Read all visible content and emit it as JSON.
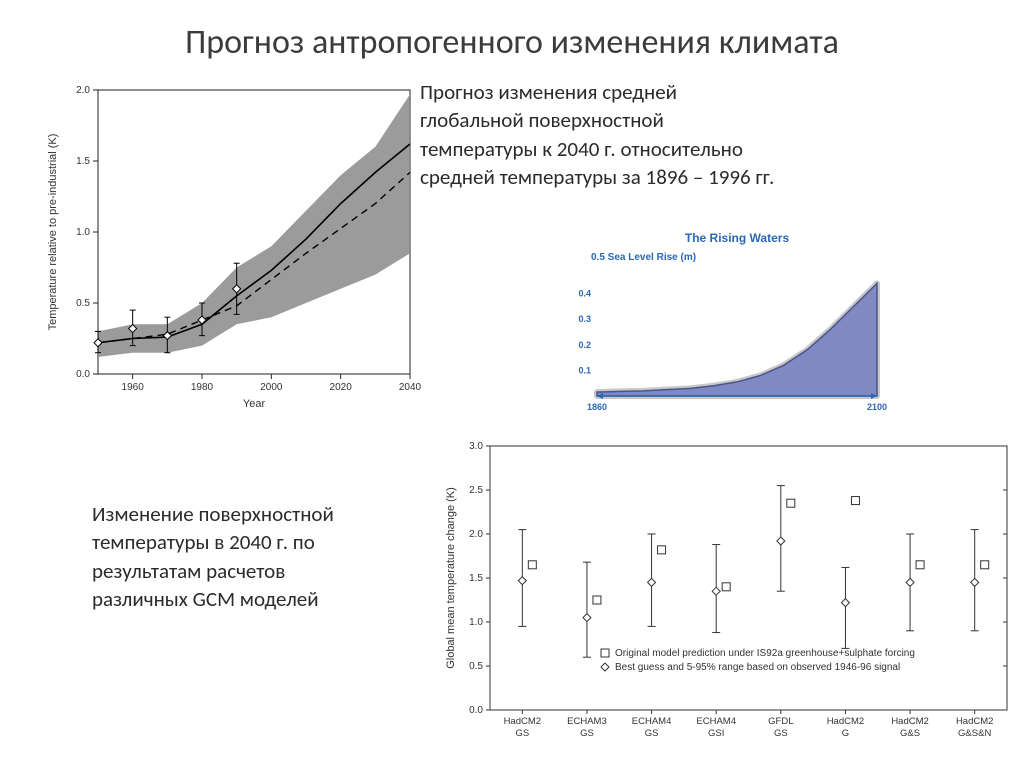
{
  "title": "Прогноз антропогенного изменения климата",
  "desc1": "Прогноз изменения средней глобальной поверхностной температуры к 2040 г. относительно средней температуры за 1896 – 1996 гг.",
  "desc2": "Изменение поверхностной температуры в 2040 г. по результатам расчетов различных GCM моделей",
  "chart1": {
    "type": "line-with-band",
    "xlabel": "Year",
    "ylabel": "Temperature relative to pre-industrial (K)",
    "xlim": [
      1950,
      2040
    ],
    "ylim": [
      0.0,
      2.0
    ],
    "xtick_step": 20,
    "ytick_step": 0.5,
    "label_fontsize": 11,
    "tick_fontsize": 10,
    "bg": "#ffffff",
    "axis_color": "#222222",
    "band_color": "#8a8a8a",
    "solid_color": "#000000",
    "dash_color": "#000000",
    "marker_color": "#000000",
    "band": {
      "x": [
        1950,
        1960,
        1970,
        1980,
        1990,
        2000,
        2010,
        2020,
        2030,
        2040
      ],
      "upper": [
        0.3,
        0.35,
        0.35,
        0.5,
        0.75,
        0.9,
        1.15,
        1.4,
        1.6,
        1.97
      ],
      "lower": [
        0.12,
        0.15,
        0.15,
        0.2,
        0.35,
        0.4,
        0.5,
        0.6,
        0.7,
        0.85
      ]
    },
    "solid": {
      "x": [
        1950,
        1960,
        1970,
        1980,
        1990,
        2000,
        2010,
        2020,
        2030,
        2040
      ],
      "y": [
        0.22,
        0.25,
        0.26,
        0.35,
        0.55,
        0.73,
        0.95,
        1.2,
        1.42,
        1.62
      ]
    },
    "dash": {
      "x": [
        1950,
        1970,
        1990,
        2010,
        2030,
        2040
      ],
      "y": [
        0.22,
        0.28,
        0.48,
        0.85,
        1.2,
        1.42
      ]
    },
    "points": [
      {
        "x": 1950,
        "y": 0.22,
        "lo": 0.15,
        "hi": 0.3
      },
      {
        "x": 1960,
        "y": 0.32,
        "lo": 0.2,
        "hi": 0.45
      },
      {
        "x": 1970,
        "y": 0.27,
        "lo": 0.15,
        "hi": 0.4
      },
      {
        "x": 1980,
        "y": 0.38,
        "lo": 0.27,
        "hi": 0.5
      },
      {
        "x": 1990,
        "y": 0.6,
        "lo": 0.42,
        "hi": 0.78
      }
    ]
  },
  "chart2": {
    "type": "area",
    "title": "The Rising Waters",
    "subtitle": "0.5 Sea Level Rise (m)",
    "title_color": "#2a68b3",
    "subtitle_color": "#2a68b3",
    "title_fontsize": 12,
    "subtitle_fontsize": 10,
    "tick_color": "#2a68b3",
    "tick_fontsize": 9,
    "fill_color": "#8189c2",
    "stroke_color": "#4a548c",
    "outer_stroke": "#c8c8c8",
    "axis_color": "#2a68b3",
    "xlim": [
      1860,
      2100
    ],
    "ylim": [
      0,
      0.5
    ],
    "yticks": [
      0.1,
      0.2,
      0.3,
      0.4
    ],
    "xticks": [
      1860,
      2100
    ],
    "series": {
      "x": [
        1860,
        1880,
        1900,
        1920,
        1940,
        1960,
        1980,
        2000,
        2020,
        2040,
        2060,
        2080,
        2100
      ],
      "y": [
        0.015,
        0.018,
        0.02,
        0.025,
        0.03,
        0.04,
        0.055,
        0.08,
        0.12,
        0.18,
        0.26,
        0.35,
        0.44
      ]
    }
  },
  "chart3": {
    "type": "scatter-error",
    "ylabel": "Global mean temperature change (K)",
    "ylim": [
      0.0,
      3.0
    ],
    "ytick_step": 0.5,
    "label_fontsize": 11,
    "tick_fontsize": 10,
    "axis_color": "#333333",
    "square_color": "#333333",
    "diamond_color": "#333333",
    "error_color": "#333333",
    "legend": {
      "line1": "Original model prediction under IS92a greenhouse+sulphate forcing",
      "line2": "Best guess and 5-95% range based on observed 1946-96 signal"
    },
    "categories": [
      "HadCM2\nGS",
      "ECHAM3\nGS",
      "ECHAM4\nGS",
      "ECHAM4\nGSI",
      "GFDL\nGS",
      "HadCM2\nG",
      "HadCM2\nG&S",
      "HadCM2\nG&S&N"
    ],
    "squares": [
      1.65,
      1.25,
      1.82,
      1.4,
      2.35,
      2.38,
      1.65,
      1.65
    ],
    "diamonds": [
      1.47,
      1.05,
      1.45,
      1.35,
      1.92,
      1.22,
      1.45,
      1.45
    ],
    "err_lo": [
      0.95,
      0.6,
      0.95,
      0.88,
      1.35,
      0.7,
      0.9,
      0.9
    ],
    "err_hi": [
      2.05,
      1.68,
      2.0,
      1.88,
      2.55,
      1.62,
      2.0,
      2.05
    ]
  }
}
